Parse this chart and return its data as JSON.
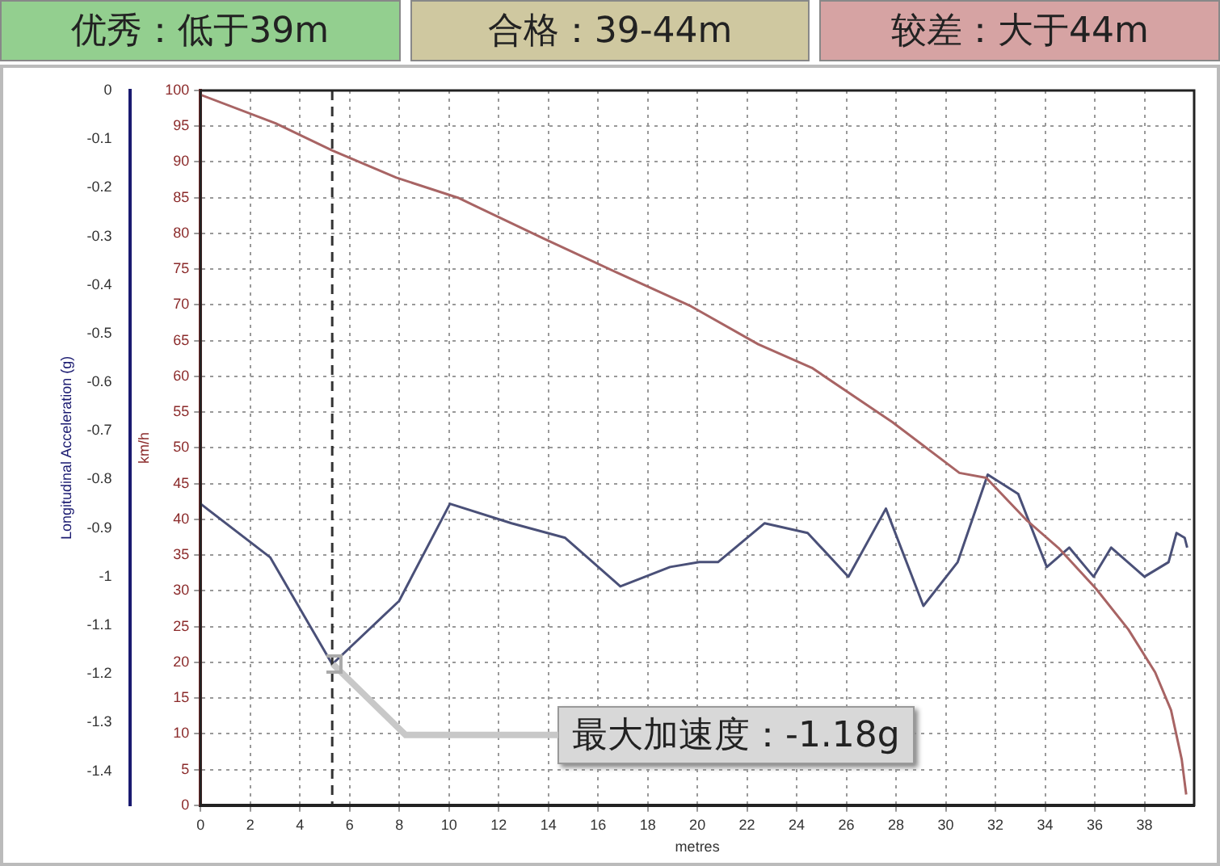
{
  "chart_data": {
    "type": "line",
    "xlabel": "metres",
    "ylabel": "Longitudinal Acceleration (g)",
    "y2label": "km/h",
    "annotations": [
      "优秀：低于39m",
      "合格：39-44m",
      "较差：大于44m",
      {
        "text": "最大加速度：-1.18g",
        "x": 5.3,
        "y": -1.18
      }
    ],
    "xlim": [
      0,
      40
    ],
    "xticks": [
      0,
      2,
      4,
      6,
      8,
      10,
      12,
      14,
      16,
      18,
      20,
      22,
      24,
      26,
      28,
      30,
      32,
      34,
      36,
      38
    ],
    "y2lim": [
      0,
      100
    ],
    "y2ticks": [
      0,
      5,
      10,
      15,
      20,
      25,
      30,
      35,
      40,
      45,
      50,
      55,
      60,
      65,
      70,
      75,
      80,
      85,
      90,
      95,
      100
    ],
    "ylim": [
      -1.47,
      0
    ],
    "yticks": [
      0,
      -0.1,
      -0.2,
      -0.3,
      -0.4,
      -0.5,
      -0.6,
      -0.7,
      -0.8,
      -0.9,
      -1,
      -1.1,
      -1.2,
      -1.3,
      -1.4
    ],
    "grid": true,
    "legend": false,
    "marker": "none",
    "line_style": "solid",
    "ref_lines": [
      {
        "axis": "x",
        "value": 5.3,
        "line_style": "dashed",
        "color": "#333333"
      }
    ],
    "series": [
      {
        "color": "#a86464",
        "axis": "y2",
        "x": [
          0,
          3.02,
          5.31,
          7.88,
          10.36,
          13.8,
          16.78,
          19.75,
          22.45,
          24.61,
          27.85,
          30.55,
          31.63,
          33.25,
          34.54,
          36.05,
          37.35,
          38.43,
          39.07,
          39.5,
          39.68
        ],
        "values": [
          99.4,
          95.4,
          91.6,
          87.8,
          85,
          79.3,
          74.5,
          69.8,
          64.5,
          61.2,
          53.6,
          46.5,
          45.8,
          39.9,
          36,
          30.3,
          24.6,
          18.6,
          13.3,
          6.4,
          1.5
        ]
      },
      {
        "color": "#4a5078",
        "x": [
          0,
          2.8,
          5.3,
          7.99,
          10.04,
          12.52,
          14.68,
          16.9,
          18.9,
          20.08,
          20.83,
          22.71,
          24.44,
          26.08,
          27.59,
          29.1,
          30.48,
          31.69,
          32.92,
          34.07,
          34.97,
          35.95,
          36.66,
          38,
          38.97,
          39.29,
          39.62,
          39.72
        ],
        "values": [
          -0.85,
          -0.96,
          -1.18,
          -1.05,
          -0.85,
          -0.89,
          -0.92,
          -1.02,
          -0.98,
          -0.97,
          -0.97,
          -0.89,
          -0.91,
          -1,
          -0.86,
          -1.06,
          -0.97,
          -0.79,
          -0.83,
          -0.98,
          -0.94,
          -1,
          -0.94,
          -1,
          -0.97,
          -0.91,
          -0.92,
          -0.94
        ]
      }
    ]
  }
}
